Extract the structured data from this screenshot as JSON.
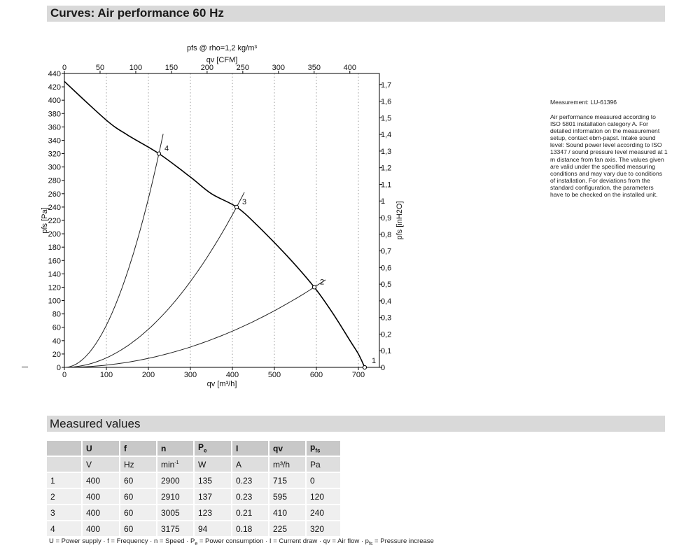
{
  "title": "Curves: Air performance 60 Hz",
  "chart_data": {
    "type": "line",
    "title": "pfs @ rho=1,2 kg/m³",
    "x_axis_bottom": {
      "label": "qv [m³/h]",
      "range": [
        0,
        750
      ],
      "ticks": [
        0,
        100,
        200,
        300,
        400,
        500,
        600,
        700
      ]
    },
    "x_axis_top": {
      "label": "qv [CFM]",
      "ticks": [
        0,
        50,
        100,
        150,
        200,
        250,
        300,
        350,
        400
      ]
    },
    "y_axis_left": {
      "label": "pfs [Pa]",
      "range": [
        0,
        440
      ],
      "ticks": [
        0,
        20,
        40,
        60,
        80,
        100,
        120,
        140,
        160,
        180,
        200,
        220,
        240,
        260,
        280,
        300,
        320,
        340,
        360,
        380,
        400,
        420,
        440
      ]
    },
    "y_axis_right": {
      "label": "pfs [inH2O]",
      "ticks": [
        "0",
        "0,1",
        "0,2",
        "0,3",
        "0,4",
        "0,5",
        "0,6",
        "0,7",
        "0,8",
        "0,9",
        "1",
        "1,1",
        "1,2",
        "1,3",
        "1,4",
        "1,5",
        "1,6",
        "1,7"
      ]
    },
    "fan_curve": [
      [
        0,
        428
      ],
      [
        100,
        370
      ],
      [
        150,
        348
      ],
      [
        225,
        320
      ],
      [
        300,
        285
      ],
      [
        350,
        260
      ],
      [
        410,
        240
      ],
      [
        460,
        212
      ],
      [
        530,
        167
      ],
      [
        595,
        120
      ],
      [
        640,
        80
      ],
      [
        680,
        40
      ],
      [
        700,
        20
      ],
      [
        715,
        0
      ]
    ],
    "system_curves": [
      {
        "point": "4",
        "qv": 225,
        "pfs": 320
      },
      {
        "point": "3",
        "qv": 410,
        "pfs": 240
      },
      {
        "point": "2",
        "qv": 595,
        "pfs": 120
      }
    ],
    "operating_points": [
      {
        "label": "1",
        "qv": 715,
        "pfs": 0
      },
      {
        "label": "2",
        "qv": 595,
        "pfs": 120
      },
      {
        "label": "3",
        "qv": 410,
        "pfs": 240
      },
      {
        "label": "4",
        "qv": 225,
        "pfs": 320
      }
    ],
    "grid": "dotted vertical"
  },
  "notes": {
    "measurement": "Measurement: LU-61396",
    "text": "Air performance measured according to ISO 5801 installation category A. For detailed information on the measurement setup, contact ebm-papst. Intake sound level: Sound power level according to ISO 13347 / sound pressure level measured at 1 m distance from fan axis. The values given are valid under the specified measuring conditions and may vary due to conditions of installation. For deviations from the standard configuration, the parameters have to be checked on the installed unit."
  },
  "measured_values": {
    "title": "Measured values",
    "headers": [
      "",
      "U",
      "f",
      "n",
      "Pe",
      "I",
      "qv",
      "pfs"
    ],
    "units": [
      "",
      "V",
      "Hz",
      "min-1",
      "W",
      "A",
      "m³/h",
      "Pa"
    ],
    "rows": [
      [
        "1",
        "400",
        "60",
        "2900",
        "135",
        "0.23",
        "715",
        "0"
      ],
      [
        "2",
        "400",
        "60",
        "2910",
        "137",
        "0.23",
        "595",
        "120"
      ],
      [
        "3",
        "400",
        "60",
        "3005",
        "123",
        "0.21",
        "410",
        "240"
      ],
      [
        "4",
        "400",
        "60",
        "3175",
        "94",
        "0.18",
        "225",
        "320"
      ]
    ]
  },
  "legend": "U = Power supply · f = Frequency · n = Speed · Pe = Power consumption · I = Current draw · qv = Air flow · pfs = Pressure increase"
}
